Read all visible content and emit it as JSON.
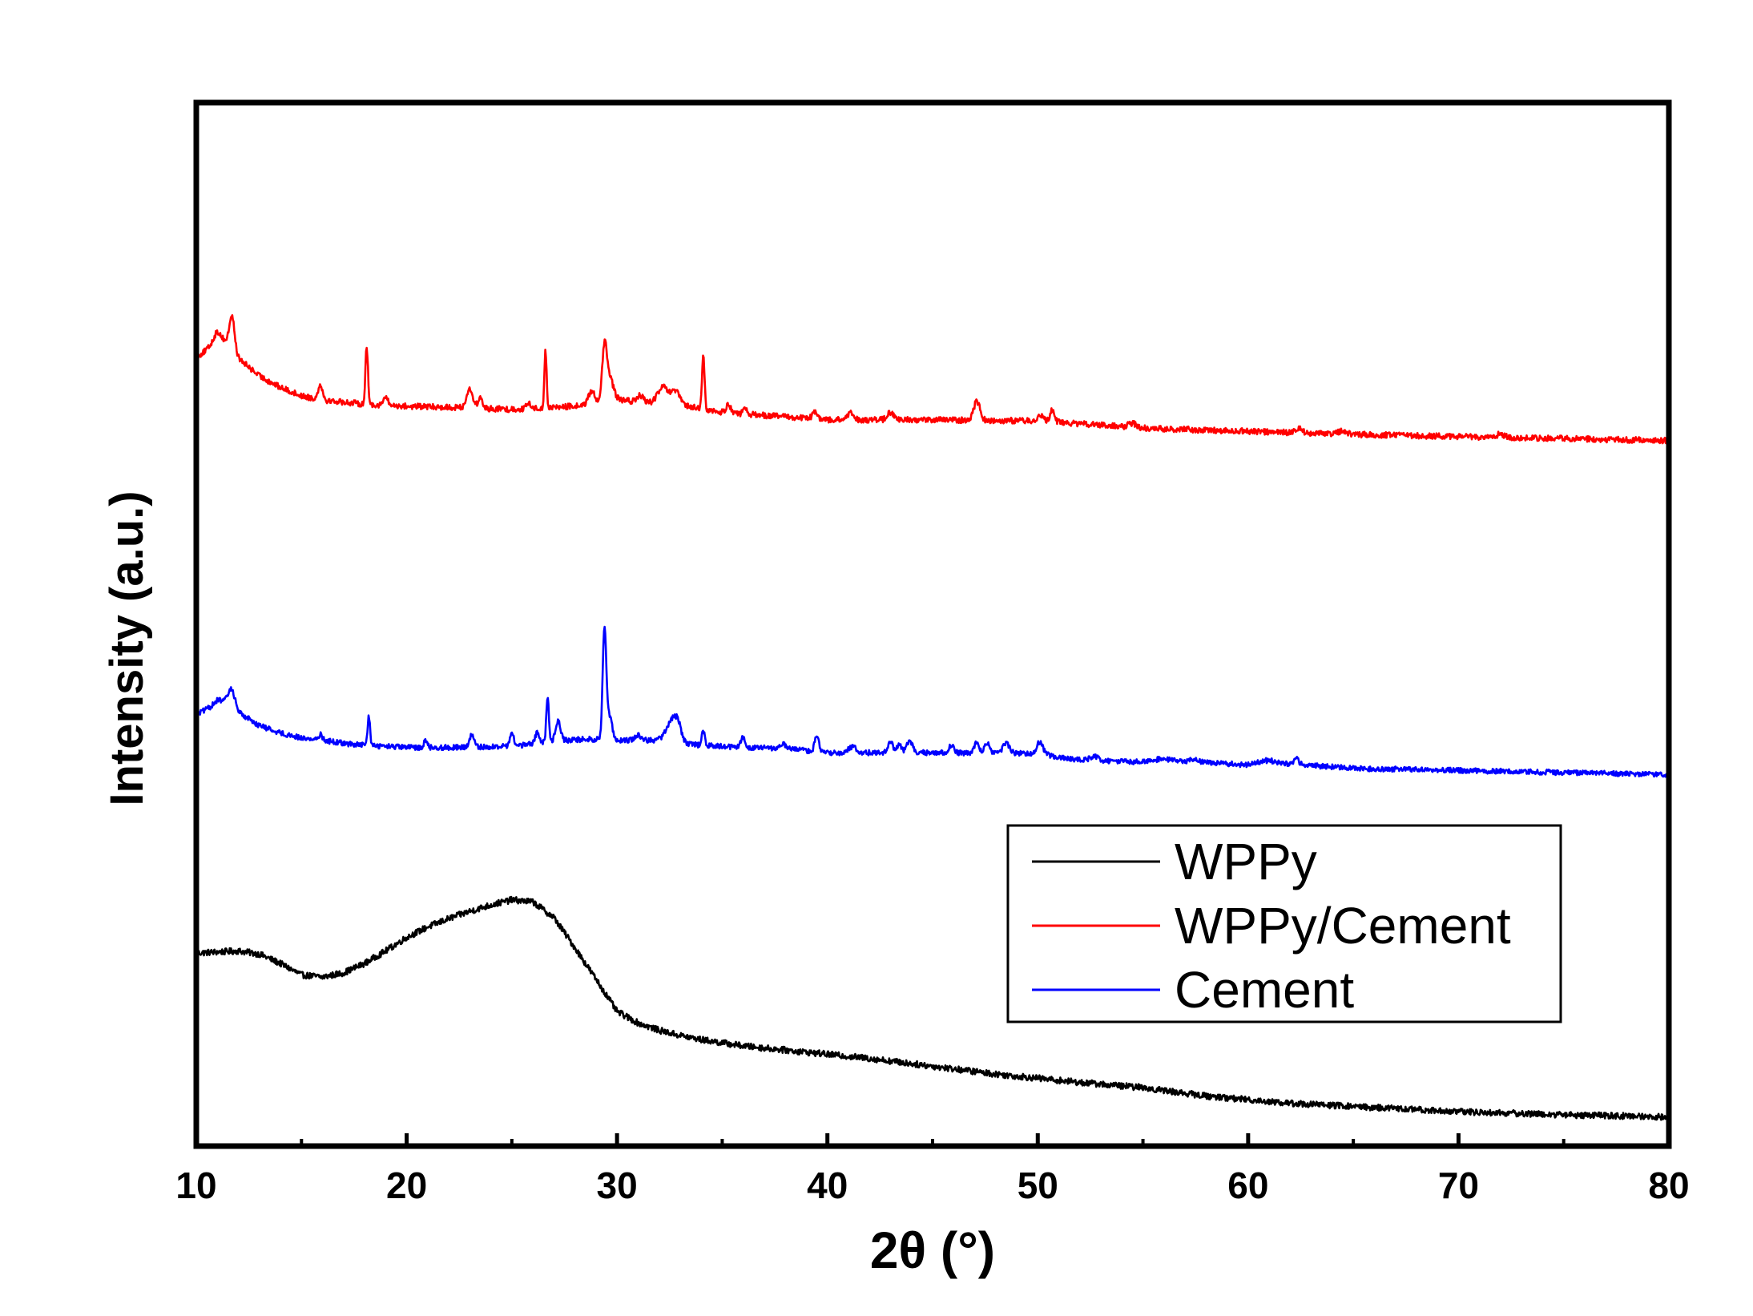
{
  "chart_data": {
    "type": "line",
    "title": "",
    "xlabel": "2θ (°)",
    "ylabel": "Intensity (a.u.)",
    "xlim": [
      10,
      80
    ],
    "xticks": [
      10,
      20,
      30,
      40,
      50,
      60,
      70,
      80
    ],
    "xtick_labels": [
      "10",
      "20",
      "30",
      "40",
      "50",
      "60",
      "70",
      "80"
    ],
    "minor_xticks": [
      15,
      25,
      35,
      45,
      55,
      65,
      75
    ],
    "ylim": [
      0,
      100
    ],
    "yticks_shown": false,
    "grid": false,
    "legend_position": "lower-right",
    "series": [
      {
        "name": "WPPy",
        "color": "#000000",
        "baseline": [
          [
            10,
            18.5
          ],
          [
            11,
            18.6
          ],
          [
            12,
            18.7
          ],
          [
            13,
            18.4
          ],
          [
            14,
            17.5
          ],
          [
            15,
            16.4
          ],
          [
            16,
            16.2
          ],
          [
            17,
            16.6
          ],
          [
            18,
            17.5
          ],
          [
            19,
            18.7
          ],
          [
            20,
            20.0
          ],
          [
            21,
            21.0
          ],
          [
            22,
            21.8
          ],
          [
            23,
            22.5
          ],
          [
            24,
            23.1
          ],
          [
            25,
            23.6
          ],
          [
            26,
            23.4
          ],
          [
            27,
            21.9
          ],
          [
            28,
            19.0
          ],
          [
            29,
            16.0
          ],
          [
            30,
            12.9
          ],
          [
            31,
            11.8
          ],
          [
            32,
            11.1
          ],
          [
            33,
            10.6
          ],
          [
            34,
            10.2
          ],
          [
            35,
            9.9
          ],
          [
            36,
            9.6
          ],
          [
            37,
            9.4
          ],
          [
            38,
            9.2
          ],
          [
            39,
            9.0
          ],
          [
            40,
            8.8
          ],
          [
            42,
            8.4
          ],
          [
            44,
            7.9
          ],
          [
            46,
            7.4
          ],
          [
            48,
            6.9
          ],
          [
            50,
            6.5
          ],
          [
            52,
            6.1
          ],
          [
            55,
            5.6
          ],
          [
            58,
            4.8
          ],
          [
            62,
            4.1
          ],
          [
            66,
            3.7
          ],
          [
            70,
            3.3
          ],
          [
            75,
            3.0
          ],
          [
            80,
            2.8
          ]
        ],
        "peaks": [],
        "noise": 0.3
      },
      {
        "name": "WPPy/Cement",
        "color": "#ff0000",
        "baseline": [
          [
            10,
            75.6
          ],
          [
            11,
            77.0
          ],
          [
            11.6,
            77.0
          ],
          [
            12,
            75.5
          ],
          [
            13,
            73.8
          ],
          [
            14,
            72.7
          ],
          [
            15,
            71.9
          ],
          [
            16,
            71.5
          ],
          [
            17,
            71.3
          ],
          [
            18,
            71.1
          ],
          [
            20,
            70.9
          ],
          [
            22,
            70.8
          ],
          [
            25,
            70.6
          ],
          [
            28,
            70.9
          ],
          [
            30,
            71.5
          ],
          [
            33,
            71.0
          ],
          [
            35,
            70.3
          ],
          [
            38,
            69.9
          ],
          [
            40,
            69.6
          ],
          [
            45,
            69.6
          ],
          [
            50,
            69.5
          ],
          [
            55,
            68.8
          ],
          [
            60,
            68.5
          ],
          [
            65,
            68.2
          ],
          [
            70,
            68.0
          ],
          [
            75,
            67.8
          ],
          [
            80,
            67.6
          ]
        ],
        "peaks": [
          [
            11.0,
            1.0,
            0.2
          ],
          [
            11.7,
            2.9,
            0.12
          ],
          [
            15.9,
            1.5,
            0.1
          ],
          [
            18.1,
            5.5,
            0.06
          ],
          [
            19.0,
            0.8,
            0.1
          ],
          [
            23.0,
            1.8,
            0.15
          ],
          [
            23.5,
            1.0,
            0.1
          ],
          [
            25.8,
            0.5,
            0.1
          ],
          [
            26.6,
            5.5,
            0.05
          ],
          [
            28.8,
            1.2,
            0.15
          ],
          [
            29.4,
            4.3,
            0.1
          ],
          [
            29.6,
            2.5,
            0.2
          ],
          [
            31.1,
            0.6,
            0.15
          ],
          [
            32.2,
            1.6,
            0.25
          ],
          [
            32.8,
            1.2,
            0.2
          ],
          [
            34.1,
            5.0,
            0.06
          ],
          [
            35.3,
            0.8,
            0.12
          ],
          [
            36.1,
            0.4,
            0.1
          ],
          [
            39.4,
            0.6,
            0.12
          ],
          [
            41.1,
            0.6,
            0.15
          ],
          [
            43.0,
            0.7,
            0.15
          ],
          [
            47.1,
            1.8,
            0.15
          ],
          [
            50.1,
            0.5,
            0.15
          ],
          [
            50.7,
            1.2,
            0.1
          ],
          [
            54.5,
            0.4,
            0.2
          ],
          [
            62.4,
            0.5,
            0.15
          ],
          [
            64.5,
            0.3,
            0.2
          ],
          [
            72.0,
            0.3,
            0.2
          ]
        ],
        "noise": 0.28
      },
      {
        "name": "Cement",
        "color": "#0000ff",
        "baseline": [
          [
            10,
            41.4
          ],
          [
            11,
            42.3
          ],
          [
            11.6,
            42.8
          ],
          [
            12,
            41.6
          ],
          [
            13,
            40.3
          ],
          [
            14,
            39.6
          ],
          [
            15,
            39.1
          ],
          [
            16,
            38.9
          ],
          [
            17,
            38.6
          ],
          [
            18,
            38.4
          ],
          [
            20,
            38.2
          ],
          [
            22,
            38.2
          ],
          [
            25,
            38.3
          ],
          [
            27,
            38.8
          ],
          [
            28.5,
            39.0
          ],
          [
            30,
            38.9
          ],
          [
            32,
            38.9
          ],
          [
            34,
            38.4
          ],
          [
            36,
            38.2
          ],
          [
            38,
            38.1
          ],
          [
            40,
            37.7
          ],
          [
            45,
            37.7
          ],
          [
            50,
            37.6
          ],
          [
            52,
            37.0
          ],
          [
            55,
            36.8
          ],
          [
            58,
            36.8
          ],
          [
            60,
            36.5
          ],
          [
            62,
            36.6
          ],
          [
            65,
            36.2
          ],
          [
            70,
            36.0
          ],
          [
            75,
            35.8
          ],
          [
            80,
            35.6
          ]
        ],
        "peaks": [
          [
            11.0,
            0.4,
            0.2
          ],
          [
            11.7,
            1.2,
            0.15
          ],
          [
            15.9,
            0.5,
            0.1
          ],
          [
            18.2,
            2.8,
            0.06
          ],
          [
            20.9,
            0.7,
            0.08
          ],
          [
            23.1,
            1.2,
            0.1
          ],
          [
            25.0,
            1.2,
            0.1
          ],
          [
            26.2,
            1.0,
            0.1
          ],
          [
            26.7,
            4.4,
            0.06
          ],
          [
            27.2,
            1.9,
            0.12
          ],
          [
            29.4,
            10.0,
            0.08
          ],
          [
            29.6,
            2.5,
            0.15
          ],
          [
            31.0,
            0.5,
            0.15
          ],
          [
            32.6,
            2.0,
            0.25
          ],
          [
            32.9,
            1.3,
            0.15
          ],
          [
            34.1,
            1.3,
            0.08
          ],
          [
            36.0,
            1.0,
            0.1
          ],
          [
            37.9,
            0.4,
            0.1
          ],
          [
            39.5,
            1.5,
            0.1
          ],
          [
            41.2,
            0.5,
            0.2
          ],
          [
            43.0,
            1.0,
            0.12
          ],
          [
            43.4,
            0.8,
            0.1
          ],
          [
            43.9,
            1.0,
            0.15
          ],
          [
            45.9,
            0.8,
            0.12
          ],
          [
            47.1,
            1.0,
            0.12
          ],
          [
            47.6,
            0.9,
            0.12
          ],
          [
            48.5,
            1.0,
            0.15
          ],
          [
            50.1,
            1.2,
            0.15
          ],
          [
            52.7,
            0.4,
            0.2
          ],
          [
            56.0,
            0.3,
            0.5
          ],
          [
            57.4,
            0.3,
            0.2
          ],
          [
            60.9,
            0.4,
            0.5
          ],
          [
            62.3,
            0.5,
            0.12
          ]
        ],
        "noise": 0.25
      }
    ]
  }
}
